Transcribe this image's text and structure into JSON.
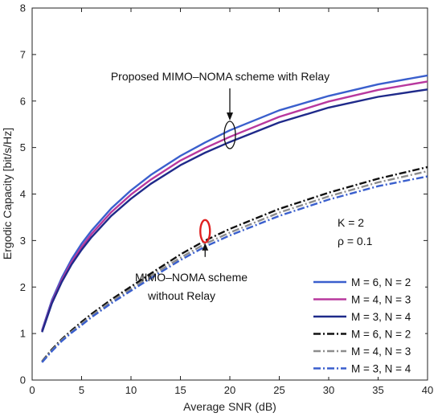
{
  "chart_data": {
    "type": "line",
    "title": "",
    "xlabel": "Average SNR (dB)",
    "ylabel": "Ergodic Capacity [bit/s/Hz]",
    "xlim": [
      0,
      40
    ],
    "ylim": [
      0,
      8
    ],
    "xticks": [
      0,
      5,
      10,
      15,
      20,
      25,
      30,
      35,
      40
    ],
    "yticks": [
      0,
      1,
      2,
      3,
      4,
      5,
      6,
      7,
      8
    ],
    "grid": false,
    "legend_position": "bottom-right",
    "x": [
      1,
      2,
      3,
      4,
      5,
      6,
      8,
      10,
      12,
      15,
      17.5,
      20,
      25,
      30,
      35,
      40
    ],
    "series": [
      {
        "name": "M = 6, N = 2",
        "color": "#3a5fcd",
        "dash": "solid",
        "values": [
          1.07,
          1.72,
          2.2,
          2.6,
          2.93,
          3.21,
          3.69,
          4.08,
          4.41,
          4.82,
          5.11,
          5.37,
          5.8,
          6.11,
          6.36,
          6.55
        ]
      },
      {
        "name": "M = 4, N = 3",
        "color": "#b8389e",
        "dash": "solid",
        "values": [
          1.05,
          1.68,
          2.15,
          2.54,
          2.86,
          3.14,
          3.61,
          3.99,
          4.31,
          4.72,
          4.99,
          5.23,
          5.66,
          5.99,
          6.24,
          6.42
        ]
      },
      {
        "name": "M = 3, N = 4",
        "color": "#1f2a8a",
        "dash": "solid",
        "values": [
          1.03,
          1.65,
          2.11,
          2.49,
          2.8,
          3.07,
          3.53,
          3.9,
          4.22,
          4.62,
          4.89,
          5.12,
          5.54,
          5.86,
          6.09,
          6.25
        ]
      },
      {
        "name": "M = 6, N = 2",
        "color": "#111111",
        "dash": "dashdot",
        "values": [
          0.4,
          0.66,
          0.88,
          1.07,
          1.25,
          1.42,
          1.73,
          2.01,
          2.29,
          2.7,
          3.0,
          3.25,
          3.68,
          4.03,
          4.33,
          4.58
        ]
      },
      {
        "name": "M = 4, N = 3",
        "color": "#8c8c8c",
        "dash": "dashdot",
        "values": [
          0.39,
          0.64,
          0.86,
          1.04,
          1.21,
          1.38,
          1.69,
          1.96,
          2.24,
          2.63,
          2.93,
          3.17,
          3.6,
          3.95,
          4.25,
          4.49
        ]
      },
      {
        "name": "M = 3, N = 4",
        "color": "#3a5fcd",
        "dash": "dashdot",
        "values": [
          0.38,
          0.62,
          0.84,
          1.02,
          1.18,
          1.35,
          1.65,
          1.92,
          2.19,
          2.58,
          2.87,
          3.11,
          3.53,
          3.88,
          4.17,
          4.38
        ]
      }
    ],
    "annotations": [
      {
        "id": "proposed",
        "lines": [
          "Proposed MIMO–NOMA scheme with Relay"
        ],
        "ellipse_center": [
          20,
          5.27
        ],
        "ellipse_color": "#111111"
      },
      {
        "id": "without",
        "lines": [
          "MIMO–NOMA scheme",
          "without Relay"
        ],
        "ellipse_center": [
          17.5,
          3.2
        ],
        "ellipse_color": "#e02020"
      }
    ],
    "params_text": [
      "K = 2",
      "ρ = 0.1"
    ]
  }
}
